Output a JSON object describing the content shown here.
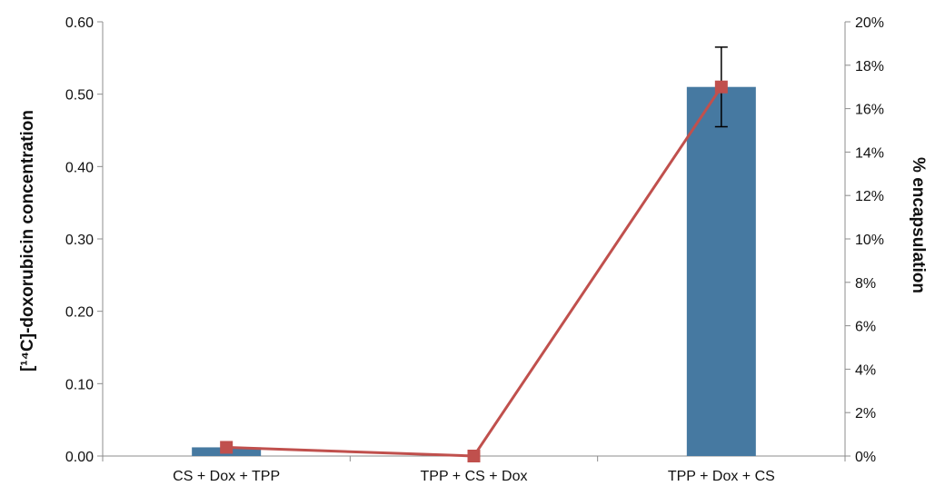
{
  "chart_data": {
    "type": "bar",
    "categories": [
      "CS + Dox + TPP",
      "TPP + CS + Dox",
      "TPP + Dox + CS"
    ],
    "series": [
      {
        "type": "bar",
        "axis": "left",
        "values": [
          0.012,
          0.0,
          0.51
        ],
        "error": [
          null,
          null,
          0.055
        ],
        "color": "#4679a1"
      },
      {
        "type": "line",
        "axis": "right",
        "values": [
          0.4,
          0.0,
          17.0
        ],
        "color": "#c0504d",
        "marker": "square"
      }
    ],
    "ylabel": "[¹⁴C]-doxorubicin concentration",
    "ylabel_right": "% encapsulation",
    "ylim": [
      0,
      0.6
    ],
    "ylim_right": [
      0,
      20
    ],
    "yticks": [
      "0.00",
      "0.10",
      "0.20",
      "0.30",
      "0.40",
      "0.50",
      "0.60"
    ],
    "yticks_right": [
      "0%",
      "2%",
      "4%",
      "6%",
      "8%",
      "10%",
      "12%",
      "14%",
      "16%",
      "18%",
      "20%"
    ],
    "grid": false,
    "legend": "none"
  }
}
